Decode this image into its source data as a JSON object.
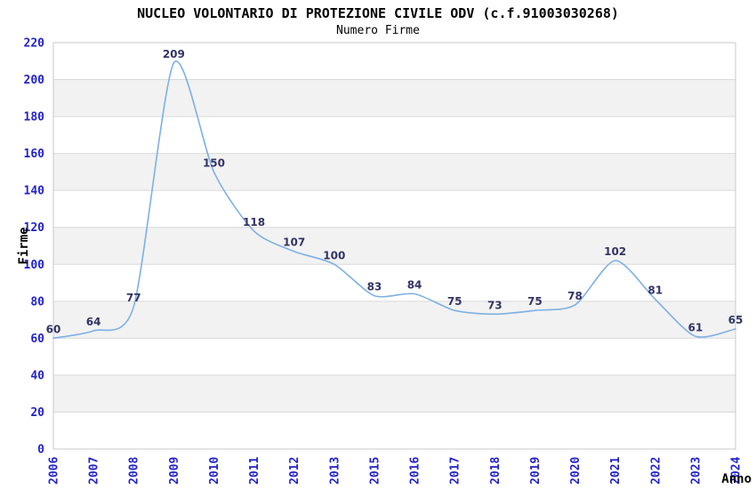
{
  "header": {
    "title": "NUCLEO VOLONTARIO DI PROTEZIONE CIVILE ODV (c.f.91003030268)",
    "subtitle": "Numero Firme"
  },
  "chart_data": {
    "type": "line",
    "title": "NUCLEO VOLONTARIO DI PROTEZIONE CIVILE ODV (c.f.91003030268)",
    "subtitle": "Numero Firme",
    "xlabel": "Anno",
    "ylabel": "Firme",
    "categories": [
      "2006",
      "2007",
      "2008",
      "2009",
      "2010",
      "2011",
      "2012",
      "2013",
      "2015",
      "2016",
      "2017",
      "2018",
      "2019",
      "2020",
      "2021",
      "2022",
      "2023",
      "2024"
    ],
    "values": [
      60,
      64,
      77,
      209,
      150,
      118,
      107,
      100,
      83,
      84,
      75,
      73,
      75,
      78,
      102,
      81,
      61,
      65
    ],
    "ylim": [
      0,
      220
    ],
    "y_ticks": [
      0,
      20,
      40,
      60,
      80,
      100,
      120,
      140,
      160,
      180,
      200,
      220
    ],
    "grid": "horizontal gridlines with alternating shaded bands",
    "legend": "none",
    "data_labels_shown": true,
    "colors": {
      "line": "#7db0e3",
      "data_label": "#333366",
      "tick_label": "#2222cc",
      "band": "#f2f2f2",
      "gridline": "#d9d9d9",
      "border": "#c9c9c9",
      "axis_title": "#000000",
      "background": "#ffffff"
    }
  }
}
